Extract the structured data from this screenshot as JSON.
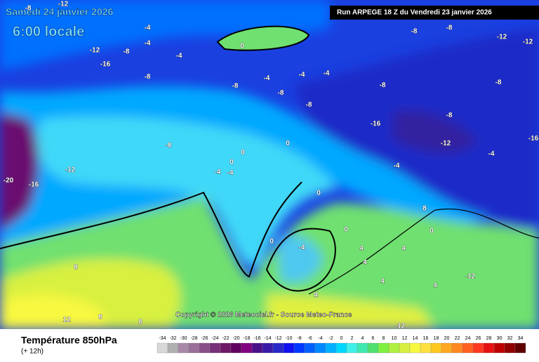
{
  "header": {
    "date": "Samedi 24 janvier 2026",
    "time": "6:00 locale",
    "run": "Run ARPEGE 18 Z du Vendredi 23 janvier 2026"
  },
  "copyright": "Copyright © 2026 Meteociel.fr - Source Meteo-France",
  "footer": {
    "title": "Température 850hPa",
    "subtitle": "(+ 12h)"
  },
  "scale": {
    "labels": [
      -34,
      -32,
      -30,
      -28,
      -26,
      -24,
      -22,
      -20,
      -18,
      -16,
      -14,
      -12,
      -10,
      -8,
      -6,
      -4,
      -2,
      0,
      2,
      4,
      6,
      8,
      10,
      12,
      14,
      16,
      18,
      20,
      22,
      24,
      26,
      28,
      30,
      32,
      34
    ],
    "colors": [
      "#d8d8d8",
      "#b0b0b0",
      "#a888a8",
      "#987098",
      "#885088",
      "#783078",
      "#701868",
      "#600060",
      "#800080",
      "#4a1088",
      "#3a1aa8",
      "#2828c8",
      "#1010f0",
      "#0038ff",
      "#0060ff",
      "#0088ff",
      "#00b0ff",
      "#00d8ff",
      "#40f0e8",
      "#40e8b0",
      "#50e070",
      "#80f040",
      "#b0f040",
      "#d8f040",
      "#f8f840",
      "#ffe040",
      "#ffc820",
      "#ffa820",
      "#ff8820",
      "#ff6020",
      "#ff3820",
      "#e81010",
      "#c00000",
      "#900000",
      "#600000"
    ]
  },
  "map": {
    "labels": [
      -12,
      -8,
      -4,
      -12,
      -4,
      -8,
      -16,
      -4,
      -8,
      0,
      -8,
      -4,
      -8,
      -12,
      -8,
      -8,
      -4,
      -4,
      -8,
      -8,
      -8,
      -8,
      -16,
      -12,
      -16,
      -12,
      -20,
      -16,
      -12,
      -8,
      0,
      0,
      -4,
      -4,
      -4,
      0,
      0,
      0,
      0,
      0,
      -4,
      4,
      4,
      4,
      8,
      8,
      12,
      8,
      8,
      4,
      -12,
      -4,
      4,
      4,
      -12
    ]
  }
}
